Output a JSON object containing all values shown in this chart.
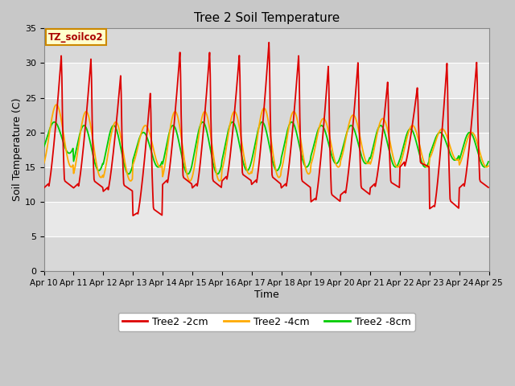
{
  "title": "Tree 2 Soil Temperature",
  "xlabel": "Time",
  "ylabel": "Soil Temperature (C)",
  "legend_label": "TZ_soilco2",
  "ylim": [
    0,
    35
  ],
  "xlim": [
    0,
    15
  ],
  "xtick_labels": [
    "Apr 10",
    "Apr 11",
    "Apr 12",
    "Apr 13",
    "Apr 14",
    "Apr 15",
    "Apr 16",
    "Apr 17",
    "Apr 18",
    "Apr 19",
    "Apr 20",
    "Apr 21",
    "Apr 22",
    "Apr 23",
    "Apr 24",
    "Apr 25"
  ],
  "ytick_values": [
    0,
    5,
    10,
    15,
    20,
    25,
    30,
    35
  ],
  "outer_bg_color": "#c8c8c8",
  "plot_bg_color": "#e8e8e8",
  "band_color_light": "#e8e8e8",
  "band_color_dark": "#d8d8d8",
  "series_colors": [
    "#dd0000",
    "#ffaa00",
    "#00cc00"
  ],
  "series_labels": [
    "Tree2 -2cm",
    "Tree2 -4cm",
    "Tree2 -8cm"
  ],
  "day_peaks_2cm": [
    32,
    31.5,
    29,
    26.5,
    32.5,
    32.5,
    32,
    34,
    32,
    30.5,
    31,
    28,
    27,
    31,
    31
  ],
  "day_mins_2cm": [
    12,
    12,
    11.5,
    8,
    12.5,
    12,
    13,
    12.5,
    12,
    10,
    11,
    12,
    15,
    9,
    12
  ],
  "day_peaks_4cm": [
    24,
    23,
    21.5,
    21,
    23,
    23,
    23,
    23.5,
    23,
    22,
    22.5,
    22,
    21,
    20.5,
    20
  ],
  "day_mins_4cm": [
    15,
    13.5,
    13,
    15,
    13,
    13,
    14,
    13.5,
    14,
    15,
    15.5,
    15,
    15,
    16,
    15
  ],
  "day_peaks_8cm": [
    21.5,
    21,
    21,
    20,
    21,
    21.5,
    21.5,
    21.5,
    21.5,
    21,
    21,
    21,
    20.5,
    20,
    20
  ],
  "day_mins_8cm": [
    17,
    14.5,
    14,
    15,
    14,
    14,
    14.5,
    14.5,
    15,
    15.5,
    15.5,
    15,
    15,
    16,
    15
  ]
}
